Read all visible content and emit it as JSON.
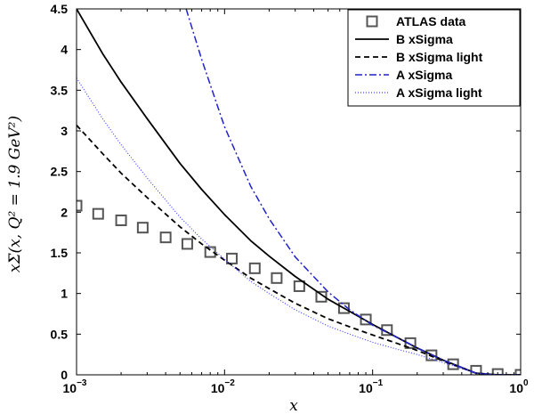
{
  "chart_data": {
    "type": "line",
    "title": "",
    "xlabel": "x",
    "ylabel": "xΣ(x, Q² = 1.9 GeV²)",
    "x_scale": "log",
    "xlim": [
      0.001,
      1
    ],
    "ylim": [
      0,
      4.5
    ],
    "x_ticks": [
      {
        "value": 0.001,
        "base": "10",
        "exp": "−3"
      },
      {
        "value": 0.01,
        "base": "10",
        "exp": "−2"
      },
      {
        "value": 0.1,
        "base": "10",
        "exp": "−1"
      },
      {
        "value": 1,
        "base": "10",
        "exp": "0"
      }
    ],
    "y_ticks": [
      0,
      0.5,
      1,
      1.5,
      2,
      2.5,
      3,
      3.5,
      4,
      4.5
    ],
    "y_tick_labels": [
      "0",
      "0.5",
      "1",
      "1.5",
      "2",
      "2.5",
      "3",
      "3.5",
      "4",
      "4.5"
    ],
    "grid": false,
    "legend_position": "top-right",
    "series": [
      {
        "name": "ATLAS data",
        "style": "markers-square",
        "color": "#555555",
        "x": [
          0.001,
          0.0014,
          0.002,
          0.0028,
          0.004,
          0.0056,
          0.008,
          0.0112,
          0.016,
          0.0225,
          0.032,
          0.045,
          0.064,
          0.09,
          0.125,
          0.18,
          0.25,
          0.35,
          0.5,
          0.7,
          1.0
        ],
        "y": [
          2.08,
          1.98,
          1.9,
          1.81,
          1.69,
          1.61,
          1.51,
          1.43,
          1.31,
          1.19,
          1.09,
          0.96,
          0.82,
          0.68,
          0.55,
          0.39,
          0.24,
          0.13,
          0.05,
          0.01,
          0.0
        ]
      },
      {
        "name": "B xSigma",
        "style": "solid",
        "color": "#000000",
        "x": [
          0.001,
          0.0015,
          0.002,
          0.003,
          0.005,
          0.007,
          0.01,
          0.015,
          0.02,
          0.03,
          0.05,
          0.07,
          0.1,
          0.15,
          0.2,
          0.3,
          0.5,
          0.7,
          1.0
        ],
        "y": [
          4.5,
          3.95,
          3.6,
          3.15,
          2.6,
          2.28,
          1.97,
          1.65,
          1.46,
          1.21,
          0.93,
          0.78,
          0.62,
          0.45,
          0.33,
          0.18,
          0.02,
          0.0,
          0.0
        ]
      },
      {
        "name": "B xSigma light",
        "style": "dashed",
        "color": "#000000",
        "x": [
          0.001,
          0.0015,
          0.002,
          0.003,
          0.005,
          0.007,
          0.01,
          0.015,
          0.02,
          0.03,
          0.05,
          0.07,
          0.1,
          0.15,
          0.2,
          0.3,
          0.5,
          0.7,
          1.0
        ],
        "y": [
          3.07,
          2.72,
          2.48,
          2.18,
          1.82,
          1.61,
          1.41,
          1.19,
          1.06,
          0.88,
          0.69,
          0.59,
          0.49,
          0.38,
          0.3,
          0.17,
          0.02,
          0.0,
          0.0
        ]
      },
      {
        "name": "A xSigma",
        "style": "dashdot",
        "color": "#2222cc",
        "x": [
          0.0055,
          0.007,
          0.01,
          0.015,
          0.02,
          0.03,
          0.05,
          0.07,
          0.1,
          0.15,
          0.2,
          0.3,
          0.5,
          0.7,
          1.0
        ],
        "y": [
          4.5,
          3.88,
          3.05,
          2.32,
          1.92,
          1.45,
          1.02,
          0.8,
          0.61,
          0.45,
          0.33,
          0.18,
          0.02,
          0.0,
          0.0
        ]
      },
      {
        "name": "A xSigma light",
        "style": "dotted",
        "color": "#4444ff",
        "x": [
          0.001,
          0.0015,
          0.002,
          0.003,
          0.005,
          0.007,
          0.01,
          0.015,
          0.02,
          0.03,
          0.05,
          0.07,
          0.1,
          0.15,
          0.2,
          0.3,
          0.5,
          0.7,
          1.0
        ],
        "y": [
          3.65,
          3.15,
          2.83,
          2.42,
          1.94,
          1.67,
          1.42,
          1.15,
          1.0,
          0.8,
          0.6,
          0.5,
          0.4,
          0.31,
          0.25,
          0.15,
          0.02,
          0.0,
          0.0
        ]
      }
    ]
  }
}
